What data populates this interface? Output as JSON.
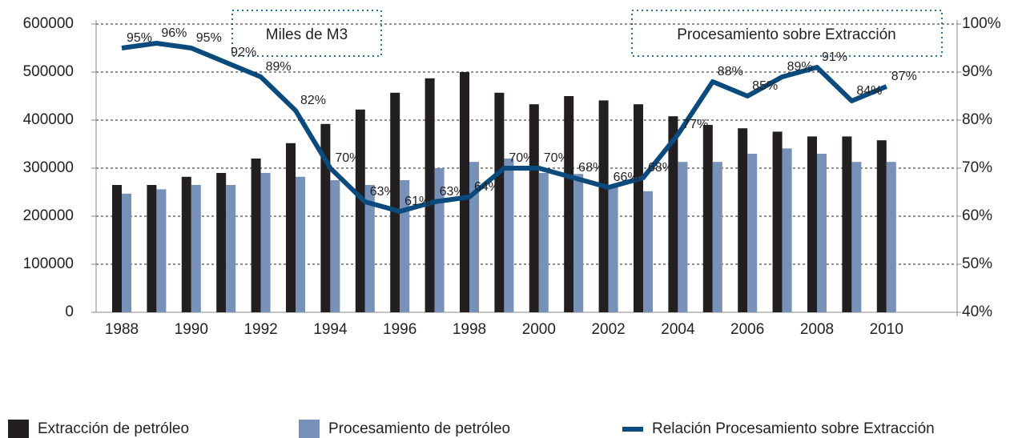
{
  "chart_data": {
    "type": "bar",
    "annotations": [
      "Miles de M3",
      "Procesamiento sobre Extracción"
    ],
    "categories": [
      "1988",
      null,
      "1990",
      null,
      "1992",
      null,
      "1994",
      null,
      "1996",
      null,
      "1998",
      null,
      "2000",
      null,
      "2002",
      null,
      "2004",
      null,
      "2006",
      null,
      "2008",
      null,
      "2010"
    ],
    "series": [
      {
        "name": "Extracción de petróleo",
        "color": "#231f20",
        "values": [
          265000,
          265000,
          282000,
          290000,
          320000,
          352000,
          392000,
          422000,
          457000,
          487000,
          500000,
          457000,
          433000,
          450000,
          441000,
          433000,
          408000,
          390000,
          383000,
          376000,
          366000,
          366000,
          358000
        ]
      },
      {
        "name": "Procesamiento de petróleo",
        "color": "#7891b8",
        "values": [
          247000,
          256000,
          265000,
          265000,
          290000,
          282000,
          275000,
          265000,
          275000,
          300000,
          313000,
          320000,
          290000,
          288000,
          262000,
          252000,
          313000,
          313000,
          330000,
          341000,
          330000,
          313000,
          313000
        ]
      },
      {
        "name": "Relación Procesamiento sobre Extracción",
        "color": "#0b4a7d",
        "type": "line",
        "axis": "y2",
        "values": [
          95,
          96,
          95,
          92,
          89,
          82,
          70,
          63,
          61,
          63,
          64,
          70,
          70,
          68,
          66,
          68,
          77,
          88,
          85,
          89,
          91,
          84,
          87
        ],
        "value_labels": [
          "95%",
          "96%",
          "95%",
          "92%",
          "89%",
          "82%",
          "70%",
          "63%",
          "61%",
          "63%",
          "64%",
          "70%",
          "70%",
          "68%",
          "66%",
          "68%",
          "77%",
          "88%",
          "85%",
          "89%",
          "91%",
          "84%",
          "87%"
        ]
      }
    ],
    "ylim": [
      0,
      600000
    ],
    "yticks": [
      0,
      100000,
      200000,
      300000,
      400000,
      500000,
      600000
    ],
    "y2lim": [
      40,
      100
    ],
    "y2ticks": [
      {
        "value": 40,
        "label": "40%"
      },
      {
        "value": 50,
        "label": "50%"
      },
      {
        "value": 60,
        "label": "60%"
      },
      {
        "value": 70,
        "label": "70%"
      },
      {
        "value": 80,
        "label": "80%"
      },
      {
        "value": 90,
        "label": "90%"
      },
      {
        "value": 100,
        "label": "100%"
      }
    ],
    "grid": true,
    "legend": "bottom"
  }
}
